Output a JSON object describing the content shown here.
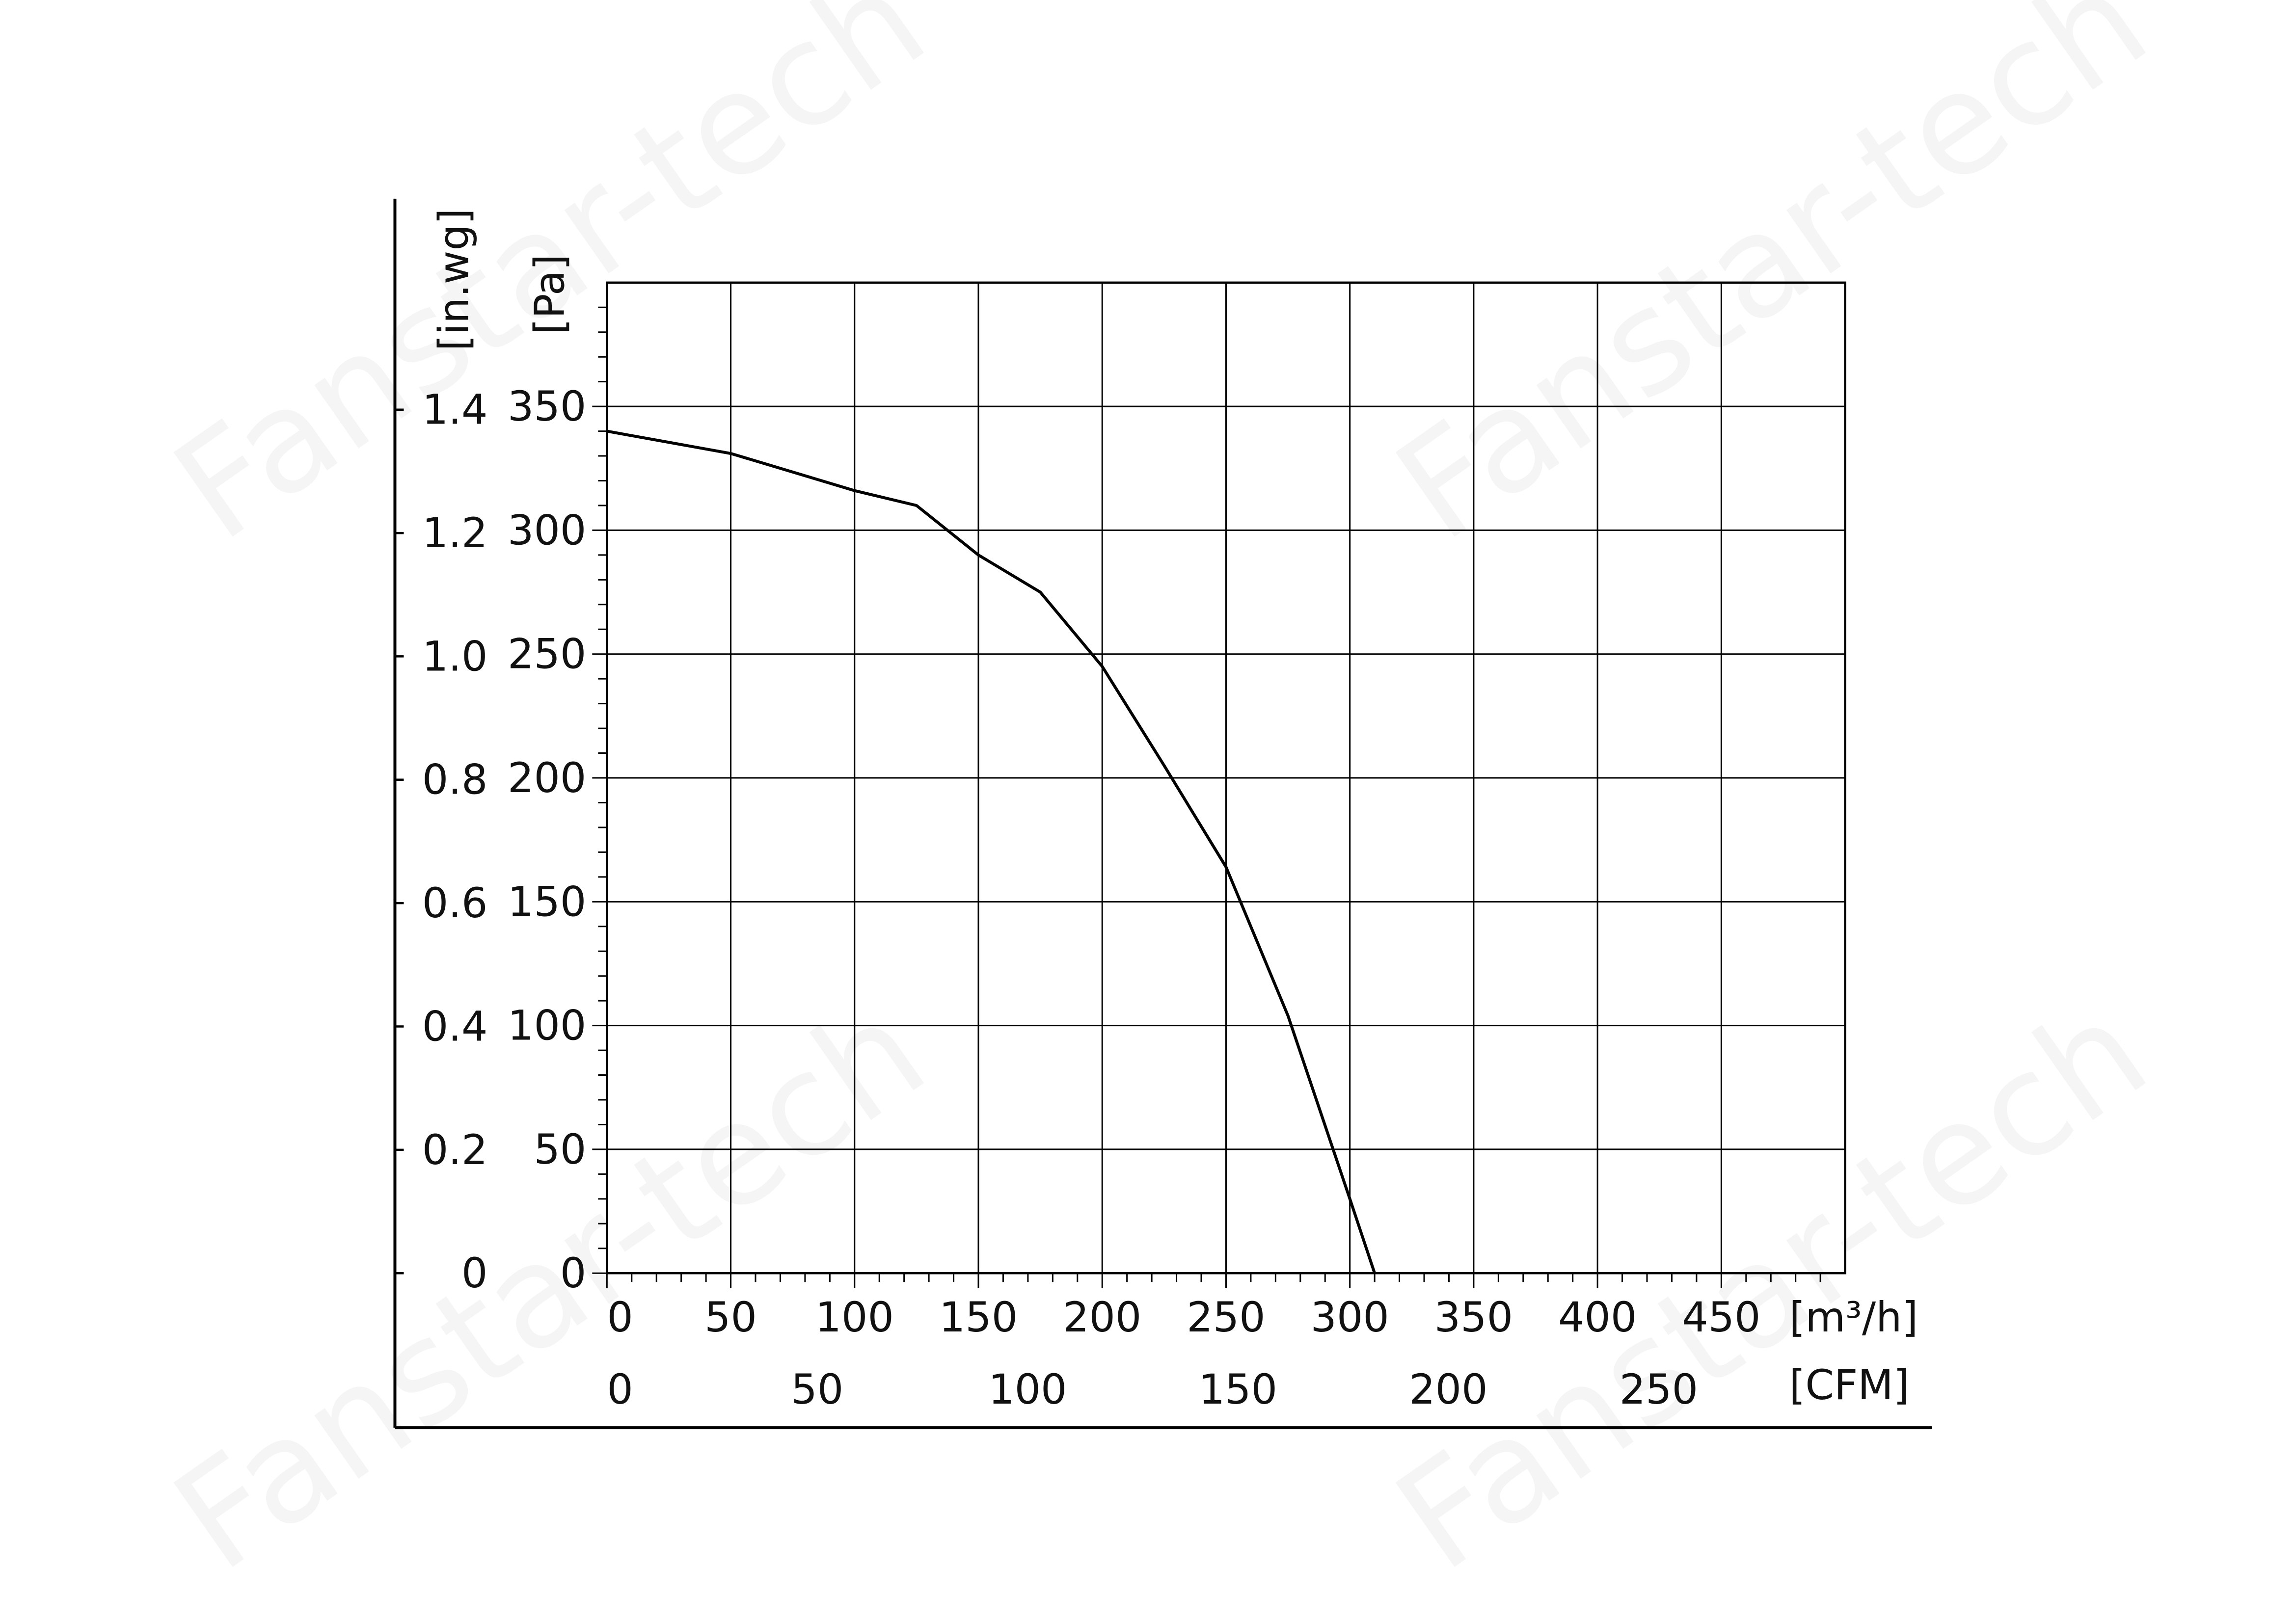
{
  "chart_data": {
    "type": "line",
    "watermark": "Fanstar-tech",
    "x_label": "[m³/h]",
    "x2_label": "[CFM]",
    "y_label": "[Pa]",
    "y2_label": "[in.wg]",
    "xlim": [
      0,
      500
    ],
    "xticks": [
      0,
      50,
      100,
      150,
      200,
      250,
      300,
      350,
      400,
      450
    ],
    "x2lim": [
      0,
      294.3
    ],
    "x2ticks": [
      0,
      50,
      100,
      150,
      200,
      250
    ],
    "ylim": [
      0,
      400
    ],
    "yticks": [
      0,
      50,
      100,
      150,
      200,
      250,
      300,
      350
    ],
    "y2lim": [
      0,
      1.606
    ],
    "y2ticks": [
      0,
      0.2,
      0.4,
      0.6,
      0.8,
      {
        "value": 1,
        "label": "1.0"
      },
      1.2,
      1.4
    ],
    "grid": true,
    "x": [
      0,
      50,
      100,
      125,
      150,
      175,
      200,
      225,
      250,
      275,
      300,
      310
    ],
    "series": [
      {
        "color": "#000000",
        "values": [
          340,
          331,
          316,
          310,
          290,
          275,
          245,
          205,
          164,
          104,
          30,
          0
        ]
      }
    ]
  }
}
